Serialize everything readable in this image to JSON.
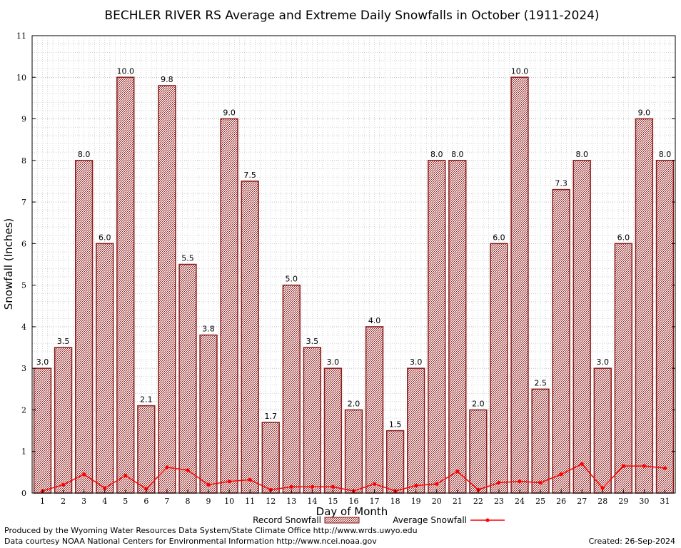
{
  "chart_data": {
    "type": "bar",
    "title": "BECHLER RIVER RS Average and Extreme Daily Snowfalls in October (1911-2024)",
    "xlabel": "Day of Month",
    "ylabel": "Snowfall (Inches)",
    "ylim": [
      0,
      11
    ],
    "yticks": [
      "0",
      "1",
      "2",
      "3",
      "4",
      "5",
      "6",
      "7",
      "8",
      "9",
      "10",
      "11"
    ],
    "grid": true,
    "legend_position": "bottom-center",
    "categories": [
      "1",
      "2",
      "3",
      "4",
      "5",
      "6",
      "7",
      "8",
      "9",
      "10",
      "11",
      "12",
      "13",
      "14",
      "15",
      "16",
      "17",
      "18",
      "19",
      "20",
      "21",
      "22",
      "23",
      "24",
      "25",
      "26",
      "27",
      "28",
      "29",
      "30",
      "31"
    ],
    "series": [
      {
        "name": "Record Snowfall",
        "type": "bar",
        "color": "#8b1a1a",
        "values": [
          3.0,
          3.5,
          8.0,
          6.0,
          10.0,
          2.1,
          9.8,
          5.5,
          3.8,
          9.0,
          7.5,
          1.7,
          5.0,
          3.5,
          3.0,
          2.0,
          4.0,
          1.5,
          3.0,
          8.0,
          8.0,
          2.0,
          6.0,
          10.0,
          2.5,
          7.3,
          8.0,
          3.0,
          6.0,
          9.0,
          8.0
        ],
        "labels": [
          "3.0",
          "3.5",
          "8.0",
          "6.0",
          "10.0",
          "2.1",
          "9.8",
          "5.5",
          "3.8",
          "9.0",
          "7.5",
          "1.7",
          "5.0",
          "3.5",
          "3.0",
          "2.0",
          "4.0",
          "1.5",
          "3.0",
          "8.0",
          "8.0",
          "2.0",
          "6.0",
          "10.0",
          "2.5",
          "7.3",
          "8.0",
          "3.0",
          "6.0",
          "9.0",
          "8.0"
        ]
      },
      {
        "name": "Average Snowfall",
        "type": "line",
        "color": "#ff0000",
        "values": [
          0.05,
          0.2,
          0.45,
          0.12,
          0.42,
          0.1,
          0.62,
          0.55,
          0.2,
          0.28,
          0.32,
          0.08,
          0.15,
          0.15,
          0.15,
          0.05,
          0.22,
          0.05,
          0.18,
          0.22,
          0.52,
          0.08,
          0.25,
          0.28,
          0.25,
          0.45,
          0.7,
          0.12,
          0.65,
          0.65,
          0.6
        ]
      }
    ]
  },
  "footer": {
    "credit_line1": "Produced by the Wyoming Water Resources Data System/State Climate Office http://www.wrds.uwyo.edu",
    "credit_line2": "Data courtesy NOAA National Centers for Environmental Information http://www.ncei.noaa.gov",
    "created": "Created:  26-Sep-2024"
  }
}
